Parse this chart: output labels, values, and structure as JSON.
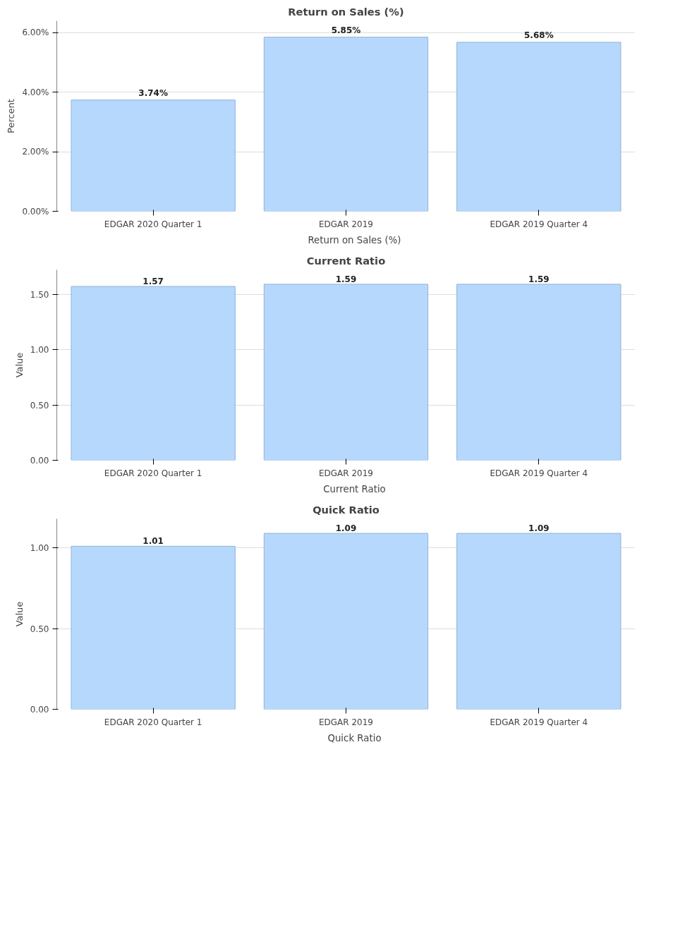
{
  "chart_data": [
    {
      "type": "bar",
      "title": "Return on Sales (%)",
      "ylabel": "Percent",
      "categories": [
        "EDGAR 2020 Quarter 1",
        "EDGAR 2019",
        "EDGAR 2019 Quarter 4"
      ],
      "series": [
        {
          "name": "Return on Sales (%)",
          "color": "#b5d8fc",
          "values": [
            3.74,
            5.85,
            5.68
          ],
          "value_labels": [
            "3.74%",
            "5.85%",
            "5.68%"
          ]
        }
      ],
      "ylim": [
        0,
        6.4
      ],
      "yticks": [
        {
          "value": 0,
          "label": "0.00%"
        },
        {
          "value": 2,
          "label": "2.00%"
        },
        {
          "value": 4,
          "label": "4.00%"
        },
        {
          "value": 6,
          "label": "6.00%"
        }
      ],
      "grid": "y",
      "legend": "bottom"
    },
    {
      "type": "bar",
      "title": "Current Ratio",
      "ylabel": "Value",
      "categories": [
        "EDGAR 2020 Quarter 1",
        "EDGAR 2019",
        "EDGAR 2019 Quarter 4"
      ],
      "series": [
        {
          "name": "Current Ratio",
          "color": "#b5d8fc",
          "values": [
            1.57,
            1.59,
            1.59
          ],
          "value_labels": [
            "1.57",
            "1.59",
            "1.59"
          ]
        }
      ],
      "ylim": [
        0,
        1.72
      ],
      "yticks": [
        {
          "value": 0,
          "label": "0.00"
        },
        {
          "value": 0.5,
          "label": "0.50"
        },
        {
          "value": 1,
          "label": "1.00"
        },
        {
          "value": 1.5,
          "label": "1.50"
        }
      ],
      "grid": "y",
      "legend": "bottom"
    },
    {
      "type": "bar",
      "title": "Quick Ratio",
      "ylabel": "Value",
      "categories": [
        "EDGAR 2020 Quarter 1",
        "EDGAR 2019",
        "EDGAR 2019 Quarter 4"
      ],
      "series": [
        {
          "name": "Quick Ratio",
          "color": "#b5d8fc",
          "values": [
            1.01,
            1.09,
            1.09
          ],
          "value_labels": [
            "1.01",
            "1.09",
            "1.09"
          ]
        }
      ],
      "ylim": [
        0,
        1.18
      ],
      "yticks": [
        {
          "value": 0,
          "label": "0.00"
        },
        {
          "value": 0.5,
          "label": "0.50"
        },
        {
          "value": 1,
          "label": "1.00"
        }
      ],
      "grid": "y",
      "legend": "bottom"
    }
  ]
}
